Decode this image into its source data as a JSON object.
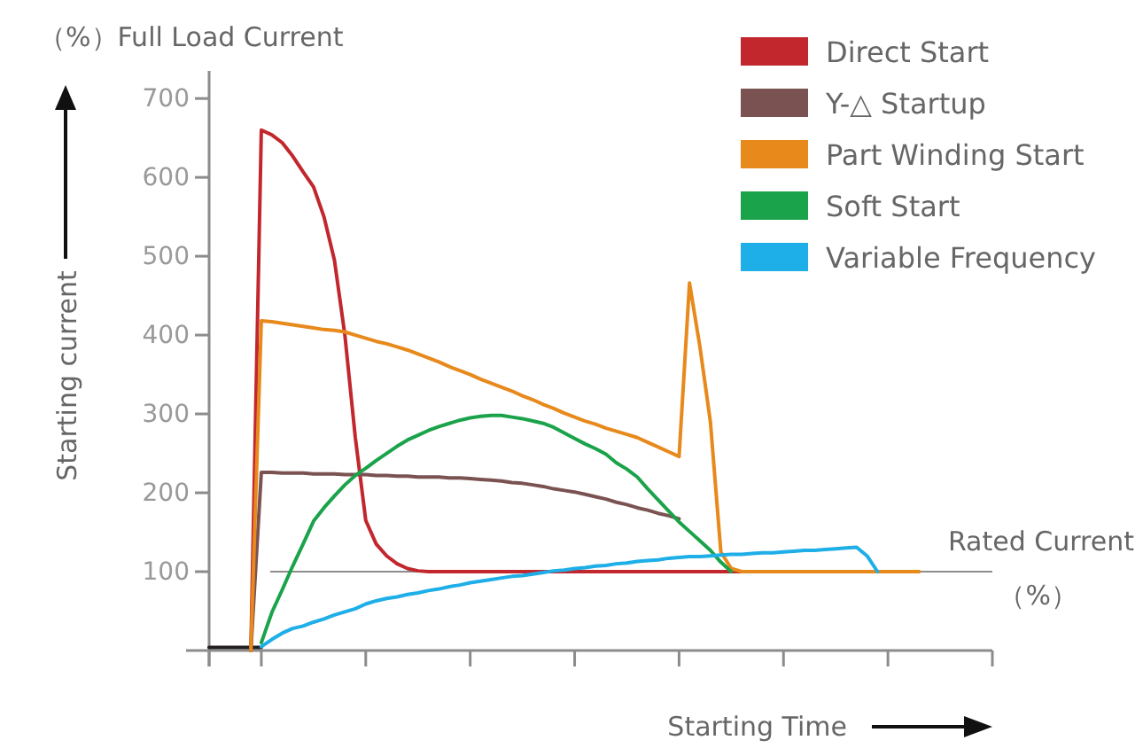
{
  "chart_data": {
    "type": "line",
    "title": "（%）Full Load Current",
    "xlabel": "Starting Time",
    "ylabel": "Starting current",
    "annotations": [
      "（%）"
    ],
    "categories": [
      null,
      null,
      null,
      null,
      null,
      null,
      null,
      null,
      null,
      null,
      null,
      null,
      null,
      null,
      null,
      null,
      null,
      null,
      null,
      null,
      null,
      null,
      null,
      null,
      null,
      null,
      null,
      null,
      null,
      null,
      null,
      null,
      null,
      null,
      null,
      null,
      null,
      null,
      null,
      null,
      null,
      null,
      null,
      null,
      null,
      null,
      null,
      null,
      null,
      null,
      null,
      null,
      null,
      null,
      null,
      null,
      null,
      null,
      null,
      null,
      null,
      null,
      null,
      null,
      null,
      null,
      null,
      null,
      null,
      null,
      null,
      null,
      null,
      null,
      null,
      null
    ],
    "ylim": [
      0,
      735
    ],
    "yticks": [
      100,
      200,
      300,
      400,
      500,
      600,
      700
    ],
    "grid": false,
    "legend": "top right",
    "ref_lines": [
      {
        "axis": "y",
        "value": 100,
        "label": "Rated Current",
        "color": "#8c8c8c"
      }
    ],
    "series": [
      {
        "color": "#231f20",
        "values": [
          4,
          4,
          4,
          4,
          4,
          4,
          null,
          null,
          null,
          null,
          null,
          null,
          null,
          null,
          null,
          null,
          null,
          null,
          null,
          null,
          null,
          null,
          null,
          null,
          null,
          null,
          null,
          null,
          null,
          null,
          null,
          null,
          null,
          null,
          null,
          null,
          null,
          null,
          null,
          null,
          null,
          null,
          null,
          null,
          null,
          null,
          null,
          null,
          null,
          null,
          null,
          null,
          null,
          null,
          null,
          null,
          null,
          null,
          null,
          null,
          null,
          null,
          null,
          null,
          null,
          null,
          null,
          null,
          null,
          null,
          null,
          null,
          null,
          null,
          null,
          null
        ]
      },
      {
        "name": "Direct Start",
        "color": "#c1272d",
        "values": [
          null,
          null,
          null,
          null,
          0,
          660,
          654,
          644,
          627,
          607,
          588,
          550,
          495,
          400,
          270,
          165,
          135,
          120,
          110,
          104,
          101,
          100,
          100,
          100,
          100,
          100,
          100,
          100,
          100,
          100,
          100,
          100,
          100,
          100,
          100,
          100,
          100,
          100,
          100,
          100,
          100,
          100,
          100,
          100,
          100,
          100,
          100,
          100,
          100,
          100,
          100,
          100,
          null,
          null,
          null,
          null,
          null,
          null,
          null,
          null,
          null,
          null,
          null,
          null,
          null,
          null,
          null,
          null,
          null,
          null,
          null,
          null,
          null,
          null,
          null,
          null
        ]
      },
      {
        "name": "Y-△ Startup",
        "color": "#7b5252",
        "values": [
          null,
          null,
          null,
          null,
          0,
          226,
          226,
          225,
          225,
          225,
          224,
          224,
          224,
          223,
          223,
          223,
          222,
          222,
          221,
          221,
          220,
          220,
          220,
          219,
          219,
          218,
          217,
          216,
          215,
          213,
          212,
          210,
          208,
          205,
          203,
          201,
          198,
          195,
          192,
          188,
          185,
          181,
          178,
          174,
          171,
          167,
          null,
          null,
          null,
          null,
          null,
          null,
          null,
          null,
          null,
          null,
          null,
          null,
          null,
          null,
          null,
          null,
          null,
          null,
          null,
          null,
          null,
          null,
          null,
          null,
          null,
          null,
          null,
          null,
          null,
          null
        ]
      },
      {
        "name": "Part Winding Start",
        "color": "#e8891c",
        "values": [
          null,
          null,
          null,
          null,
          0,
          418,
          417,
          415,
          413,
          411,
          409,
          407,
          406,
          404,
          400,
          396,
          392,
          389,
          385,
          381,
          376,
          371,
          366,
          360,
          355,
          350,
          344,
          339,
          334,
          329,
          323,
          318,
          312,
          307,
          301,
          296,
          291,
          287,
          282,
          278,
          274,
          270,
          264,
          258,
          252,
          246,
          466,
          385,
          290,
          125,
          104,
          100,
          100,
          100,
          100,
          100,
          100,
          100,
          100,
          100,
          100,
          100,
          100,
          100,
          100,
          100,
          100,
          100,
          100,
          null,
          null,
          null,
          null,
          null,
          null,
          null
        ]
      },
      {
        "name": "Soft Start",
        "color": "#1aa34a",
        "values": [
          null,
          null,
          null,
          null,
          null,
          10,
          48,
          77,
          107,
          135,
          164,
          181,
          196,
          210,
          222,
          231,
          241,
          250,
          259,
          267,
          273,
          279,
          284,
          288,
          292,
          295,
          297,
          298,
          298,
          296,
          294,
          291,
          288,
          283,
          276,
          269,
          262,
          256,
          249,
          238,
          230,
          220,
          205,
          191,
          177,
          163,
          151,
          139,
          127,
          112,
          100,
          null,
          null,
          null,
          null,
          null,
          null,
          null,
          null,
          null,
          null,
          null,
          null,
          null,
          null,
          null,
          null,
          null,
          null,
          null,
          null,
          null,
          null,
          null,
          null,
          null
        ]
      },
      {
        "name": "Variable Frequency",
        "color": "#1eaee8",
        "values": [
          null,
          null,
          null,
          null,
          null,
          5,
          14,
          22,
          28,
          31,
          36,
          40,
          45,
          49,
          53,
          59,
          63,
          66,
          68,
          71,
          73,
          76,
          78,
          81,
          83,
          86,
          88,
          90,
          92,
          94,
          95,
          97,
          99,
          101,
          102,
          104,
          105,
          107,
          108,
          110,
          111,
          113,
          114,
          115,
          117,
          118,
          119,
          119,
          120,
          121,
          122,
          122,
          123,
          124,
          124,
          125,
          126,
          127,
          127,
          128,
          129,
          130,
          131,
          120,
          100,
          null,
          null,
          null,
          null,
          null,
          null,
          null,
          null,
          null,
          null,
          null
        ]
      }
    ]
  }
}
